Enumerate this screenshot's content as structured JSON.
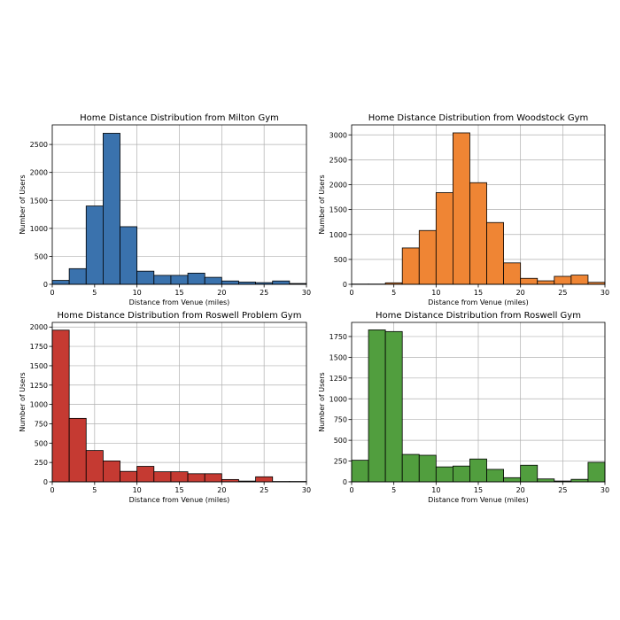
{
  "chart_data": [
    {
      "type": "bar",
      "title": "Home Distance Distribution from Milton Gym",
      "xlabel": "Distance from Venue (miles)",
      "ylabel": "Number of Users",
      "color": "#3a72ad",
      "bin_width": 2,
      "xlim": [
        0,
        30
      ],
      "ylim": [
        0,
        2850
      ],
      "xticks": [
        0,
        5,
        10,
        15,
        20,
        25,
        30
      ],
      "yticks": [
        0,
        500,
        1000,
        1500,
        2000,
        2500
      ],
      "grid": true,
      "bins": [
        0,
        2,
        4,
        6,
        8,
        10,
        12,
        14,
        16,
        18,
        20,
        22,
        24,
        26,
        28
      ],
      "values": [
        70,
        280,
        1400,
        2700,
        1030,
        235,
        160,
        160,
        200,
        125,
        60,
        40,
        30,
        60,
        15
      ]
    },
    {
      "type": "bar",
      "title": "Home Distance Distribution from Woodstock Gym",
      "xlabel": "Distance from Venue (miles)",
      "ylabel": "Number of Users",
      "color": "#ef8534",
      "bin_width": 2,
      "xlim": [
        0,
        30
      ],
      "ylim": [
        0,
        3200
      ],
      "xticks": [
        0,
        5,
        10,
        15,
        20,
        25,
        30
      ],
      "yticks": [
        0,
        500,
        1000,
        1500,
        2000,
        2500,
        3000
      ],
      "grid": true,
      "bins": [
        0,
        2,
        4,
        6,
        8,
        10,
        12,
        14,
        16,
        18,
        20,
        22,
        24,
        26,
        28
      ],
      "values": [
        5,
        5,
        30,
        730,
        1080,
        1840,
        3040,
        2040,
        1240,
        430,
        120,
        70,
        160,
        185,
        40
      ]
    },
    {
      "type": "bar",
      "title": "Home Distance Distribution from Roswell Problem Gym",
      "xlabel": "Distance from Venue (miles)",
      "ylabel": "Number of Users",
      "color": "#c53a32",
      "bin_width": 2,
      "xlim": [
        0,
        30
      ],
      "ylim": [
        0,
        2060
      ],
      "xticks": [
        0,
        5,
        10,
        15,
        20,
        25,
        30
      ],
      "yticks": [
        0,
        250,
        500,
        750,
        1000,
        1250,
        1500,
        1750,
        2000
      ],
      "grid": true,
      "bins": [
        0,
        2,
        4,
        6,
        8,
        10,
        12,
        14,
        16,
        18,
        20,
        22,
        24,
        26,
        28
      ],
      "values": [
        1960,
        820,
        405,
        270,
        135,
        200,
        130,
        130,
        105,
        105,
        30,
        10,
        65,
        5,
        5
      ]
    },
    {
      "type": "bar",
      "title": "Home Distance Distribution from Roswell Gym",
      "xlabel": "Distance from Venue (miles)",
      "ylabel": "Number of Users",
      "color": "#519e3e",
      "bin_width": 2,
      "xlim": [
        0,
        30
      ],
      "ylim": [
        0,
        1920
      ],
      "xticks": [
        0,
        5,
        10,
        15,
        20,
        25,
        30
      ],
      "yticks": [
        0,
        250,
        500,
        750,
        1000,
        1250,
        1500,
        1750
      ],
      "grid": true,
      "bins": [
        0,
        2,
        4,
        6,
        8,
        10,
        12,
        14,
        16,
        18,
        20,
        22,
        24,
        26,
        28
      ],
      "values": [
        260,
        1830,
        1810,
        330,
        320,
        180,
        190,
        275,
        150,
        50,
        200,
        35,
        10,
        30,
        235
      ]
    }
  ]
}
